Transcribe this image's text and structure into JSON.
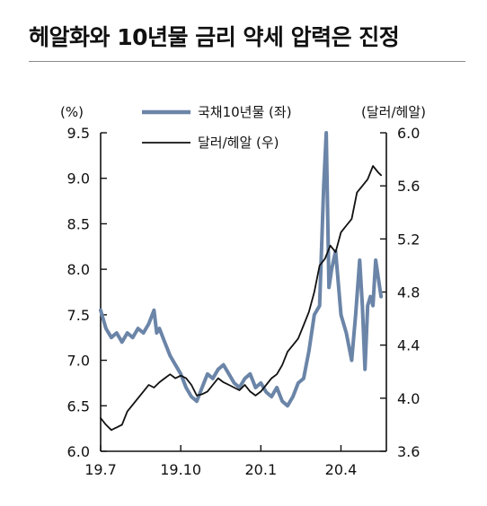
{
  "title": "헤알화와 10년물 금리 약세 압력은 진정",
  "chart_data": {
    "type": "line",
    "title": "헤알화와 10년물 금리 약세 압력은 진정",
    "x_ticks": [
      "19.7",
      "19.10",
      "20.1",
      "20.4"
    ],
    "x_tick_positions": [
      0,
      3,
      6,
      9
    ],
    "x_range": [
      0,
      10.7
    ],
    "left_axis": {
      "unit": "(%)",
      "ylim": [
        6.0,
        9.5
      ],
      "ticks": [
        "9.5",
        "9.0",
        "8.5",
        "8.0",
        "7.5",
        "7.0",
        "6.5",
        "6.0"
      ]
    },
    "right_axis": {
      "unit": "(달러/헤알)",
      "ylim": [
        3.6,
        6.0
      ],
      "ticks": [
        "6.0",
        "5.6",
        "5.2",
        "4.8",
        "4.4",
        "4.0",
        "3.6"
      ]
    },
    "legend": {
      "placement": "top-center"
    },
    "series": [
      {
        "name": "국채10년물 (좌)",
        "axis": "left",
        "color": "#6b85a8",
        "x": [
          0,
          0.2,
          0.4,
          0.6,
          0.8,
          1.0,
          1.2,
          1.4,
          1.6,
          1.8,
          2.0,
          2.1,
          2.2,
          2.4,
          2.6,
          2.8,
          3.0,
          3.2,
          3.4,
          3.6,
          3.8,
          4.0,
          4.2,
          4.4,
          4.6,
          4.8,
          5.0,
          5.2,
          5.4,
          5.6,
          5.8,
          6.0,
          6.2,
          6.4,
          6.6,
          6.8,
          7.0,
          7.2,
          7.4,
          7.6,
          7.8,
          8.0,
          8.2,
          8.35,
          8.45,
          8.55,
          8.65,
          8.8,
          9.0,
          9.2,
          9.4,
          9.55,
          9.7,
          9.8,
          9.9,
          10.0,
          10.1,
          10.2,
          10.3,
          10.4,
          10.5
        ],
        "y": [
          7.55,
          7.35,
          7.25,
          7.3,
          7.2,
          7.3,
          7.25,
          7.35,
          7.3,
          7.4,
          7.55,
          7.3,
          7.35,
          7.2,
          7.05,
          6.95,
          6.85,
          6.7,
          6.6,
          6.55,
          6.7,
          6.85,
          6.8,
          6.9,
          6.95,
          6.85,
          6.75,
          6.7,
          6.8,
          6.85,
          6.7,
          6.75,
          6.65,
          6.6,
          6.7,
          6.55,
          6.5,
          6.6,
          6.75,
          6.8,
          7.1,
          7.5,
          7.6,
          8.9,
          9.5,
          7.8,
          8.0,
          8.2,
          7.5,
          7.3,
          7.0,
          7.5,
          8.1,
          7.6,
          6.9,
          7.6,
          7.7,
          7.6,
          8.1,
          7.9,
          7.7
        ]
      },
      {
        "name": "달러/헤알 (우)",
        "axis": "right",
        "color": "#111111",
        "x": [
          0,
          0.2,
          0.4,
          0.6,
          0.8,
          1.0,
          1.2,
          1.4,
          1.6,
          1.8,
          2.0,
          2.2,
          2.4,
          2.6,
          2.8,
          3.0,
          3.2,
          3.4,
          3.6,
          3.8,
          4.0,
          4.2,
          4.4,
          4.6,
          4.8,
          5.0,
          5.2,
          5.4,
          5.6,
          5.8,
          6.0,
          6.2,
          6.4,
          6.6,
          6.8,
          7.0,
          7.2,
          7.4,
          7.6,
          7.8,
          8.0,
          8.2,
          8.4,
          8.6,
          8.8,
          9.0,
          9.2,
          9.4,
          9.6,
          9.8,
          10.0,
          10.2,
          10.4,
          10.5
        ],
        "y": [
          3.85,
          3.8,
          3.76,
          3.78,
          3.8,
          3.9,
          3.95,
          4.0,
          4.05,
          4.1,
          4.08,
          4.12,
          4.15,
          4.18,
          4.15,
          4.17,
          4.15,
          4.1,
          4.02,
          4.03,
          4.05,
          4.1,
          4.15,
          4.12,
          4.1,
          4.08,
          4.06,
          4.1,
          4.05,
          4.02,
          4.05,
          4.1,
          4.15,
          4.18,
          4.25,
          4.35,
          4.4,
          4.45,
          4.55,
          4.65,
          4.8,
          5.0,
          5.05,
          5.15,
          5.1,
          5.25,
          5.3,
          5.35,
          5.55,
          5.6,
          5.65,
          5.75,
          5.7,
          5.68
        ]
      }
    ]
  }
}
